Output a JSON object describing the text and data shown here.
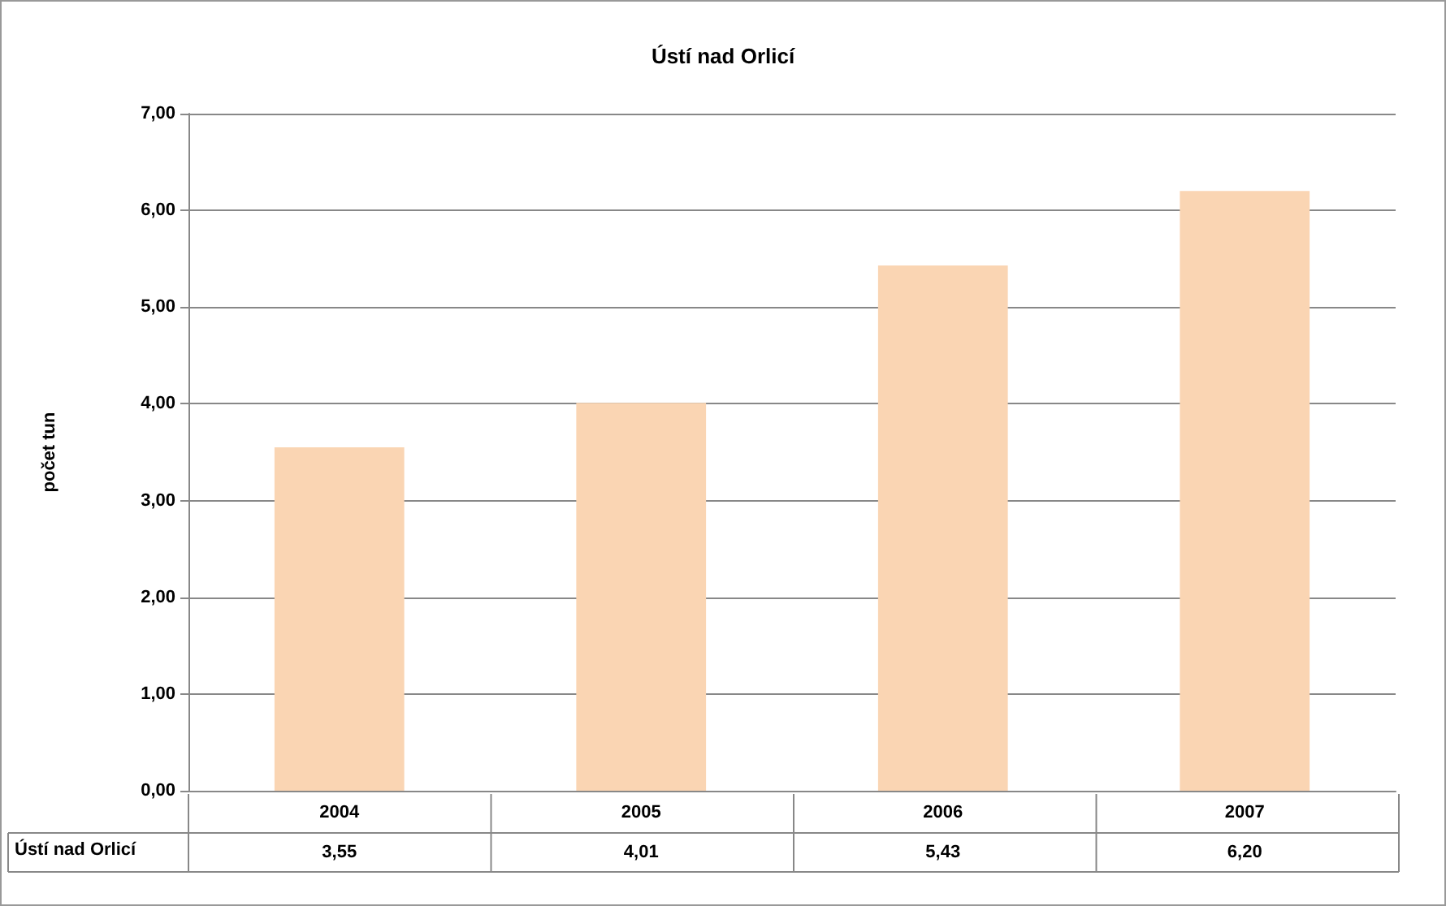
{
  "chart_data": {
    "type": "bar",
    "title": "Ústí nad Orlicí",
    "ylabel": "počet tun",
    "categories": [
      "2004",
      "2005",
      "2006",
      "2007"
    ],
    "series": [
      {
        "name": "Ústí nad Orlicí",
        "color": "#fad5b3",
        "values": [
          3.55,
          4.01,
          5.43,
          6.2
        ],
        "value_labels": [
          "3,55",
          "4,01",
          "5,43",
          "6,20"
        ]
      }
    ],
    "ylim": [
      0,
      7
    ],
    "yticks": [
      {
        "value": 0,
        "label": "0,00"
      },
      {
        "value": 1,
        "label": "1,00"
      },
      {
        "value": 2,
        "label": "2,00"
      },
      {
        "value": 3,
        "label": "3,00"
      },
      {
        "value": 4,
        "label": "4,00"
      },
      {
        "value": 5,
        "label": "5,00"
      },
      {
        "value": 6,
        "label": "6,00"
      },
      {
        "value": 7,
        "label": "7,00"
      }
    ],
    "grid": "y",
    "legend": false
  }
}
